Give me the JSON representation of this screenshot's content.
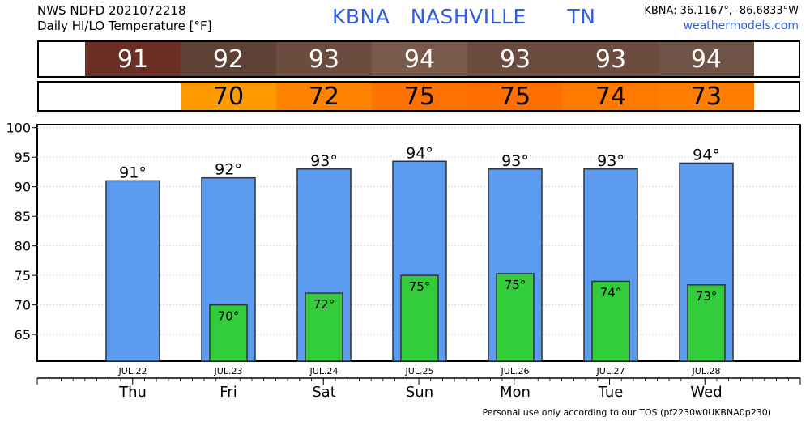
{
  "header": {
    "line1": "NWS NDFD 2021072218",
    "line2": "Daily HI/LO Temperature [°F]",
    "station": "KBNA",
    "city": "NASHVILLE",
    "state": "TN",
    "coords": "KBNA: 36.1167°, -86.6833°W",
    "site": "weathermodels.com"
  },
  "hi_strip": [
    {
      "value": "91",
      "color": "#6b2f26"
    },
    {
      "value": "92",
      "color": "#5e4235"
    },
    {
      "value": "93",
      "color": "#6b4c3e"
    },
    {
      "value": "94",
      "color": "#7a5a4c"
    },
    {
      "value": "93",
      "color": "#6b4c3e"
    },
    {
      "value": "93",
      "color": "#6b4c3e"
    },
    {
      "value": "94",
      "color": "#6e5346"
    }
  ],
  "lo_strip": [
    {
      "value": "",
      "color": "#ffffff"
    },
    {
      "value": "70",
      "color": "#ff9900"
    },
    {
      "value": "72",
      "color": "#ff8200"
    },
    {
      "value": "75",
      "color": "#ff7100"
    },
    {
      "value": "75",
      "color": "#ff6f00"
    },
    {
      "value": "74",
      "color": "#ff7800"
    },
    {
      "value": "73",
      "color": "#ff7e00"
    }
  ],
  "chart_data": {
    "type": "bar",
    "categories": [
      "Thu",
      "Fri",
      "Sat",
      "Sun",
      "Mon",
      "Tue",
      "Wed"
    ],
    "dates": [
      "JUL.22",
      "JUL.23",
      "JUL.24",
      "JUL.25",
      "JUL.26",
      "JUL.27",
      "JUL.28"
    ],
    "series": [
      {
        "values": [
          91,
          91.5,
          93,
          94.3,
          93,
          93,
          94
        ],
        "labels": [
          "91°",
          "92°",
          "93°",
          "94°",
          "93°",
          "93°",
          "94°"
        ],
        "color": "#5b9cf0"
      },
      {
        "values": [
          null,
          70,
          72,
          75,
          75.3,
          74,
          73.4
        ],
        "labels": [
          "",
          "70°",
          "72°",
          "75°",
          "75°",
          "74°",
          "73°"
        ],
        "color": "#33cc3a"
      }
    ],
    "ylim": [
      60.5,
      100.5
    ],
    "yticks": [
      65,
      70,
      75,
      80,
      85,
      90,
      95,
      100
    ],
    "grid": true
  },
  "footer": "Personal use only according to our TOS (pf2230w0UKBNA0p230)"
}
